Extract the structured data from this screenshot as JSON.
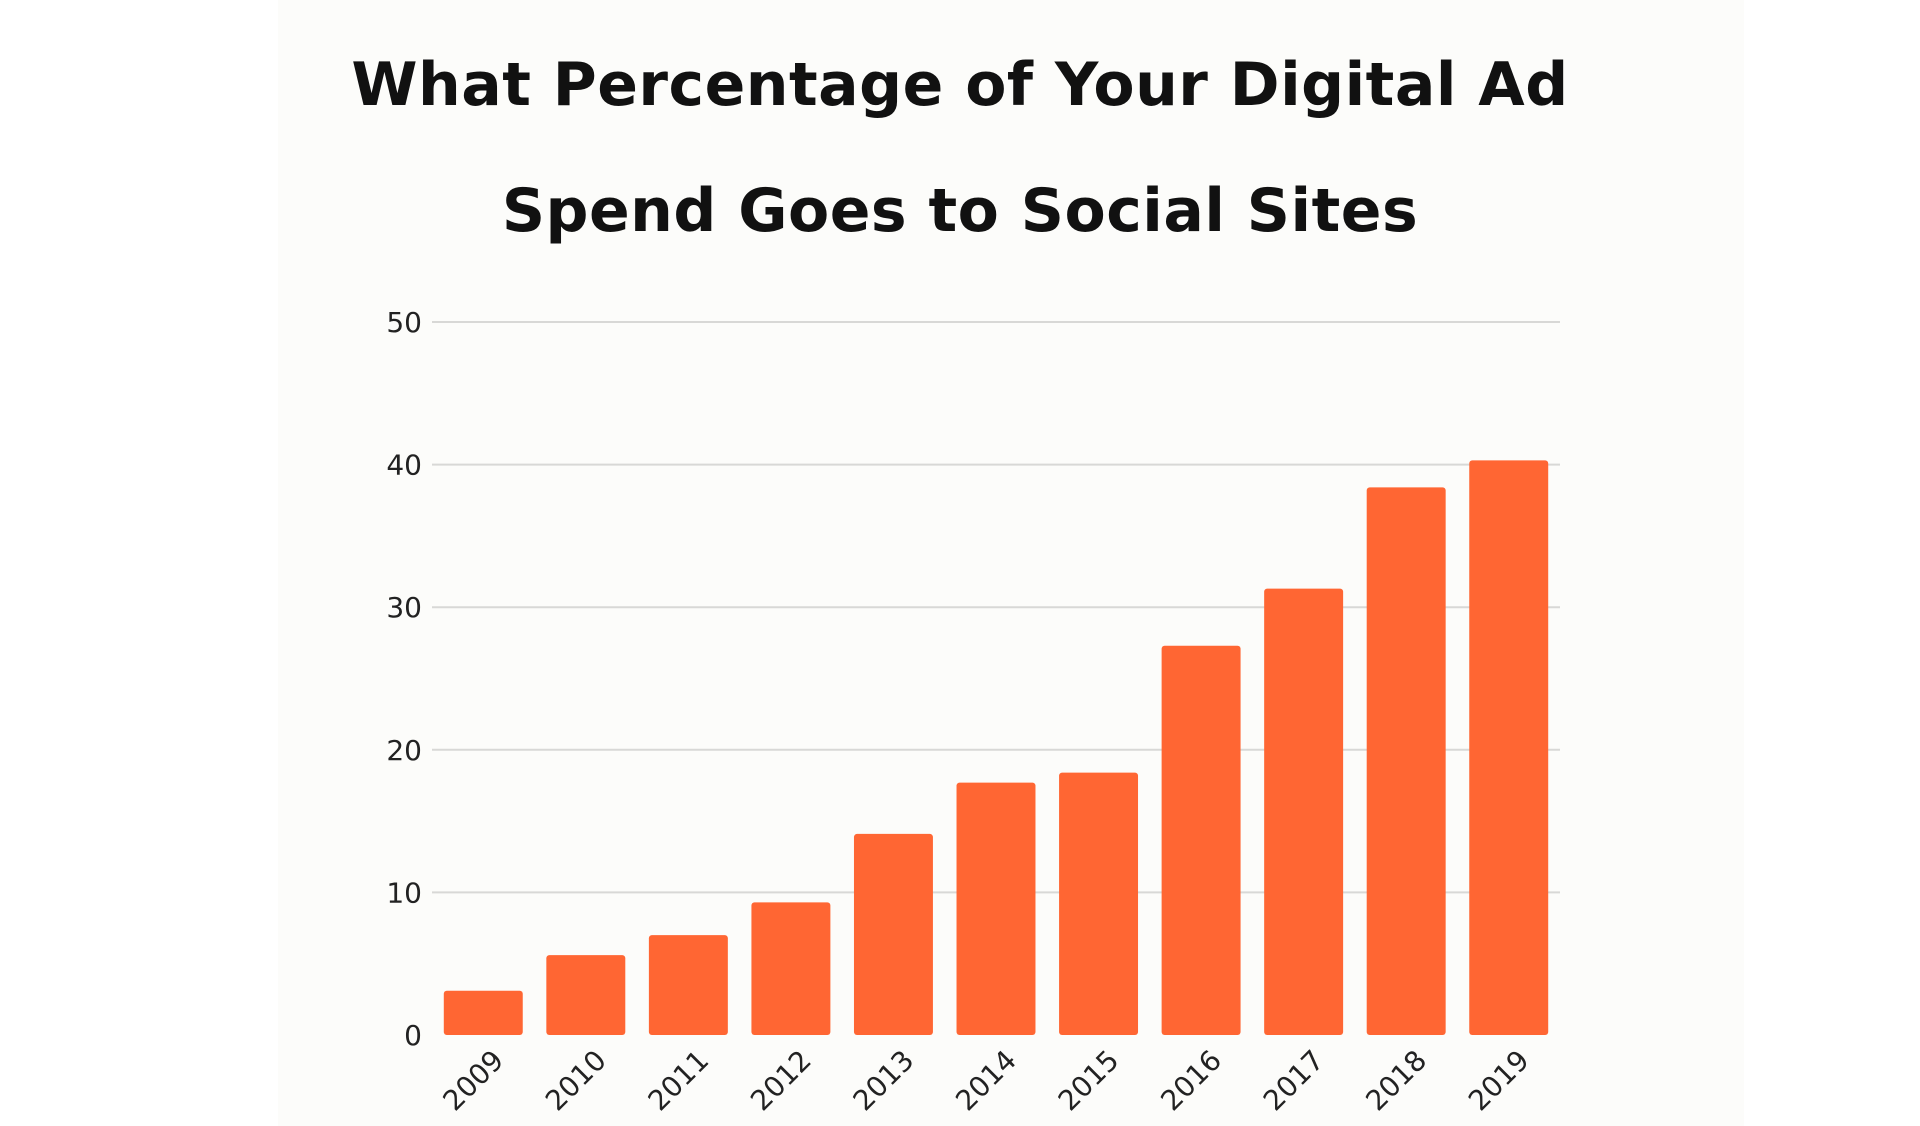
{
  "colors": {
    "bar": "#ff6633",
    "grid": "#d8d8d6",
    "background": "#fcfcfa",
    "text": "#111111"
  },
  "chart_data": {
    "type": "bar",
    "title_lines": [
      "What Percentage of Your Digital Ad",
      "Spend Goes to Social Sites"
    ],
    "title": "What Percentage of Your Digital Ad Spend Goes to Social Sites",
    "xlabel": "",
    "ylabel": "",
    "categories": [
      "2009",
      "2010",
      "2011",
      "2012",
      "2013",
      "2014",
      "2015",
      "2016",
      "2017",
      "2018",
      "2019"
    ],
    "values": [
      3.1,
      5.6,
      7.0,
      9.3,
      14.1,
      17.7,
      18.4,
      27.3,
      31.3,
      38.4,
      40.3
    ],
    "ylim": [
      0,
      50
    ],
    "yticks": [
      "0",
      "10",
      "20",
      "30",
      "40",
      "50"
    ],
    "grid": true,
    "legend": "none"
  }
}
